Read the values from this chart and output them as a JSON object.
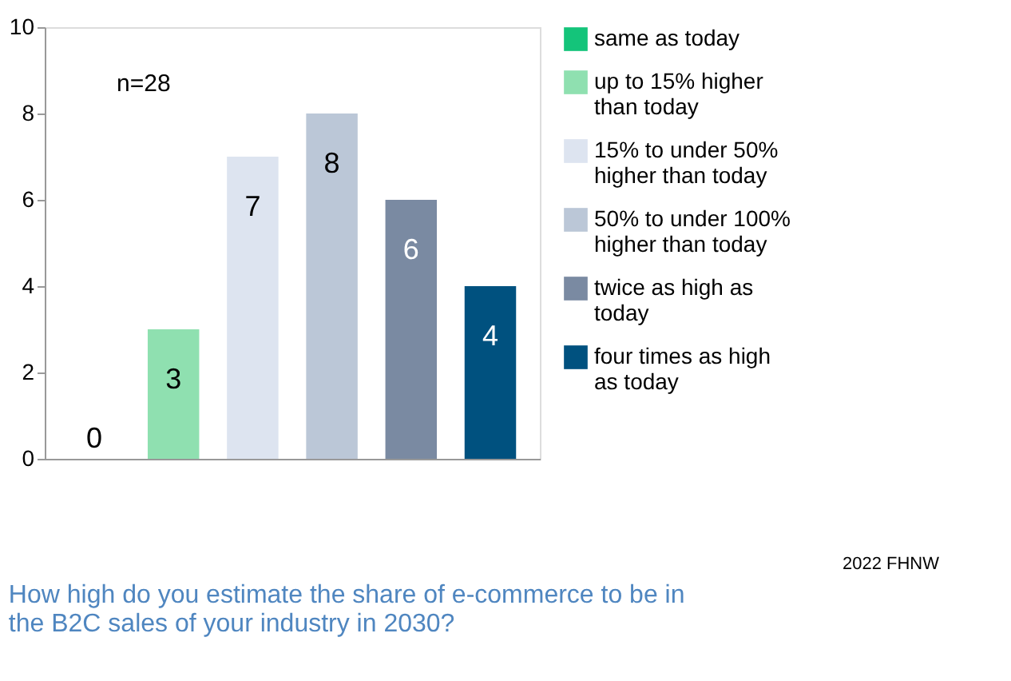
{
  "chart_data": {
    "type": "bar",
    "title": "How high do you estimate the share of e-commerce to be in the B2C sales of your industry in 2030?",
    "categories": [
      null,
      null,
      null,
      null,
      null,
      null
    ],
    "series": [
      {
        "name": "same as today",
        "color": "#14c47a",
        "values": [
          0,
          null,
          null,
          null,
          null,
          null
        ]
      },
      {
        "name": "up to 15% higher than today",
        "color": "#8fe0b0",
        "values": [
          null,
          3,
          null,
          null,
          null,
          null
        ]
      },
      {
        "name": "15% to under 50% higher than today",
        "color": "#dde4f0",
        "values": [
          null,
          null,
          7,
          null,
          null,
          null
        ]
      },
      {
        "name": "50% to under 100% higher than today",
        "color": "#bbc7d7",
        "values": [
          null,
          null,
          null,
          8,
          null,
          null
        ]
      },
      {
        "name": "twice as high as today",
        "color": "#7a8aa2",
        "values": [
          null,
          null,
          null,
          null,
          6,
          null
        ]
      },
      {
        "name": "four times as high as today",
        "color": "#00517f",
        "values": [
          null,
          null,
          null,
          null,
          null,
          4
        ]
      }
    ],
    "ylim": [
      0,
      10
    ],
    "yticks": [
      0,
      2,
      4,
      6,
      8,
      10
    ],
    "grid": false,
    "legend": "right",
    "tick_labels": "y",
    "data_labels": true,
    "annotations": [
      "n=28",
      "2022 FHNW"
    ]
  }
}
